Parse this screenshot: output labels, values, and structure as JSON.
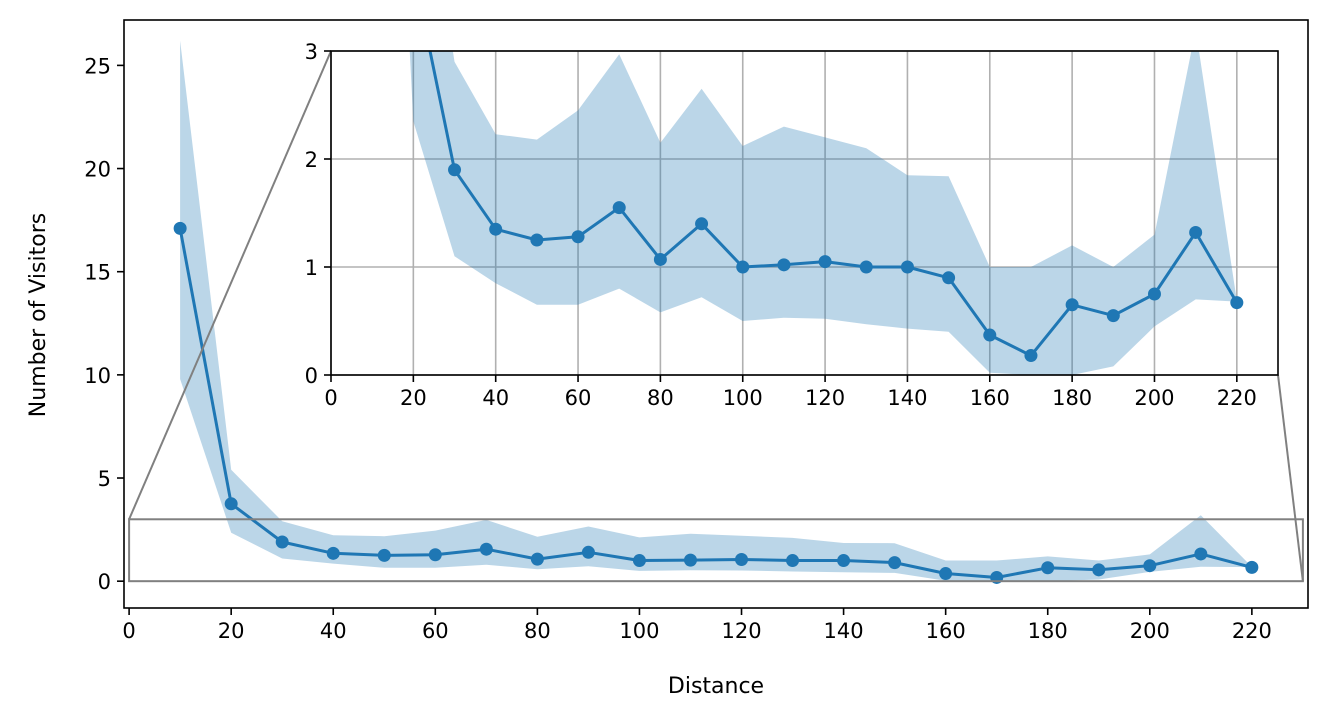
{
  "chart_data": {
    "type": "line",
    "xlabel": "Distance",
    "ylabel": "Number of Visitors",
    "xlim": [
      -1,
      231
    ],
    "ylim": [
      -1.3,
      27.2
    ],
    "x_ticks": [
      0,
      20,
      40,
      60,
      80,
      100,
      120,
      140,
      160,
      180,
      200,
      220
    ],
    "y_ticks": [
      0,
      5,
      10,
      15,
      20,
      25
    ],
    "grid": false,
    "colors": {
      "line": "#1f77b4",
      "band": "#1f77b4",
      "zoom_box": "#808080",
      "grid": "#b0b0b0"
    },
    "series": [
      {
        "x": [
          10,
          20,
          30,
          40,
          50,
          60,
          70,
          80,
          90,
          100,
          110,
          120,
          130,
          140,
          150,
          160,
          170,
          180,
          190,
          200,
          210,
          220
        ],
        "values": [
          17.1,
          3.75,
          1.9,
          1.35,
          1.25,
          1.28,
          1.55,
          1.07,
          1.4,
          1.0,
          1.02,
          1.05,
          1.0,
          1.0,
          0.9,
          0.37,
          0.18,
          0.65,
          0.55,
          0.75,
          1.32,
          0.67
        ],
        "lower": [
          9.8,
          2.35,
          1.1,
          0.85,
          0.65,
          0.65,
          0.8,
          0.58,
          0.72,
          0.5,
          0.53,
          0.52,
          0.47,
          0.43,
          0.4,
          0.02,
          0.0,
          0.0,
          0.08,
          0.45,
          0.7,
          0.68
        ],
        "upper": [
          26.2,
          5.4,
          2.9,
          2.23,
          2.18,
          2.45,
          2.97,
          2.15,
          2.65,
          2.12,
          2.3,
          2.2,
          2.1,
          1.85,
          1.84,
          1.0,
          1.0,
          1.2,
          1.0,
          1.3,
          3.2,
          0.69
        ]
      }
    ],
    "inset": {
      "xlim": [
        0,
        230
      ],
      "ylim": [
        0,
        3
      ],
      "x_ticks": [
        0,
        20,
        40,
        60,
        80,
        100,
        120,
        140,
        160,
        180,
        200,
        220
      ],
      "y_ticks": [
        0,
        1,
        2,
        3
      ],
      "grid": true,
      "zoom_region": {
        "x": [
          0,
          230
        ],
        "y": [
          0,
          3
        ]
      }
    }
  }
}
